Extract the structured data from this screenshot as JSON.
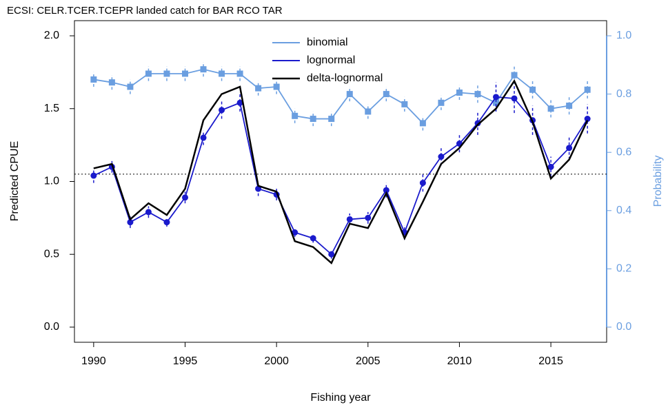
{
  "chart_data": {
    "type": "line",
    "title": "ECSI: CELR.TCER.TCEPR landed catch for BAR RCO TAR",
    "x_label": "Fishing year",
    "y_label": "Predicted CPUE",
    "y2_label": "Probability",
    "x": [
      1990,
      1991,
      1992,
      1993,
      1994,
      1995,
      1996,
      1997,
      1998,
      1999,
      2000,
      2001,
      2002,
      2003,
      2004,
      2005,
      2006,
      2007,
      2008,
      2009,
      2010,
      2011,
      2012,
      2013,
      2014,
      2015,
      2016,
      2017
    ],
    "xlim": [
      1988.95,
      2018.05
    ],
    "xticks": [
      1990,
      1995,
      2000,
      2005,
      2010,
      2015
    ],
    "ylim": [
      -0.104,
      2.104
    ],
    "yticks": [
      {
        "value": 0,
        "label": "0.0"
      },
      {
        "value": 0.5,
        "label": "0.5"
      },
      {
        "value": 1,
        "label": "1.0"
      },
      {
        "value": 1.5,
        "label": "1.5"
      },
      {
        "value": 2,
        "label": "2.0"
      }
    ],
    "y2lim": [
      -0.052,
      1.052
    ],
    "y2ticks": [
      {
        "value": 0,
        "label": "0.0"
      },
      {
        "value": 0.2,
        "label": "0.2"
      },
      {
        "value": 0.4,
        "label": "0.4"
      },
      {
        "value": 0.6,
        "label": "0.6"
      },
      {
        "value": 0.8,
        "label": "0.8"
      },
      {
        "value": 1,
        "label": "1.0"
      }
    ],
    "y2_color": "#6a9ee0",
    "reference_line": 1.05,
    "legend": "top",
    "series": [
      {
        "name": "binomial",
        "color": "#6a9ee0",
        "axis": "y2",
        "marker": "square",
        "values": [
          0.85,
          0.84,
          0.825,
          0.87,
          0.87,
          0.87,
          0.885,
          0.87,
          0.87,
          0.82,
          0.825,
          0.725,
          0.715,
          0.715,
          0.8,
          0.74,
          0.8,
          0.765,
          0.7,
          0.77,
          0.805,
          0.8,
          0.77,
          0.865,
          0.815,
          0.75,
          0.76,
          0.815
        ],
        "errors": [
          0.025,
          0.025,
          0.025,
          0.025,
          0.025,
          0.025,
          0.025,
          0.025,
          0.025,
          0.025,
          0.025,
          0.025,
          0.025,
          0.025,
          0.025,
          0.025,
          0.025,
          0.025,
          0.025,
          0.025,
          0.025,
          0.03,
          0.03,
          0.03,
          0.03,
          0.03,
          0.03,
          0.03
        ]
      },
      {
        "name": "lognormal",
        "color": "#1a1acc",
        "marker": "circle",
        "values": [
          1.04,
          1.1,
          0.72,
          0.79,
          0.72,
          0.89,
          1.3,
          1.49,
          1.54,
          0.95,
          0.91,
          0.65,
          0.61,
          0.5,
          0.74,
          0.75,
          0.94,
          0.65,
          0.99,
          1.17,
          1.26,
          1.4,
          1.58,
          1.57,
          1.42,
          1.1,
          1.23,
          1.43
        ],
        "errors": [
          0.05,
          0.04,
          0.04,
          0.04,
          0.03,
          0.04,
          0.05,
          0.06,
          0.06,
          0.05,
          0.04,
          0.03,
          0.03,
          0.03,
          0.04,
          0.04,
          0.05,
          0.05,
          0.06,
          0.06,
          0.06,
          0.08,
          0.1,
          0.1,
          0.1,
          0.07,
          0.08,
          0.1
        ]
      },
      {
        "name": "delta-lognormal",
        "color": "#000000",
        "values": [
          1.09,
          1.12,
          0.74,
          0.85,
          0.77,
          0.95,
          1.42,
          1.6,
          1.65,
          0.97,
          0.93,
          0.59,
          0.55,
          0.44,
          0.71,
          0.68,
          0.92,
          0.61,
          0.86,
          1.12,
          1.23,
          1.39,
          1.5,
          1.69,
          1.41,
          1.02,
          1.15,
          1.42
        ]
      }
    ]
  }
}
